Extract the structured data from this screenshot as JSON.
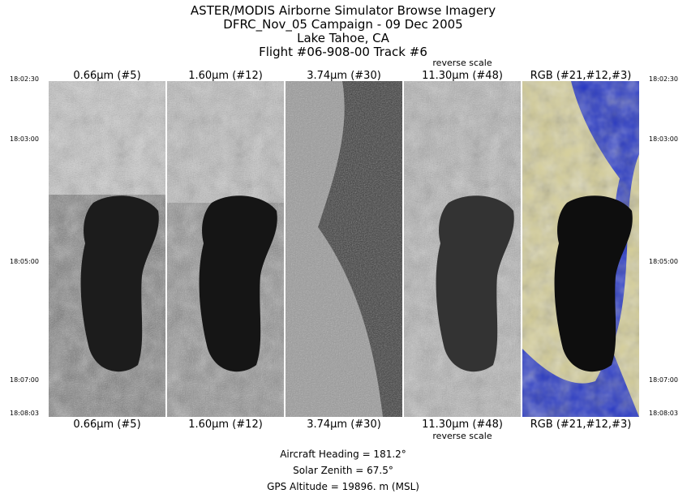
{
  "header": {
    "lines": [
      "ASTER/MODIS Airborne Simulator Browse Imagery",
      "DFRC_Nov_05 Campaign - 09 Dec 2005",
      "Lake Tahoe, CA",
      "Flight #06-908-00 Track #6"
    ]
  },
  "panels": [
    {
      "label": "0.66μm (#5)"
    },
    {
      "label": "1.60μm (#12)"
    },
    {
      "label": "3.74μm (#30)"
    },
    {
      "label": "11.30μm (#48)",
      "note": "reverse scale"
    },
    {
      "label": "RGB (#21,#12,#3)"
    }
  ],
  "times": [
    "18:02:30",
    "18:03:00",
    "18:05:00",
    "18:07:00",
    "18:08:03"
  ],
  "footer": {
    "lines": [
      "Aircraft Heading =  181.2°",
      "Solar Zenith =  67.5°",
      "GPS Altitude =  19896. m (MSL)"
    ]
  }
}
